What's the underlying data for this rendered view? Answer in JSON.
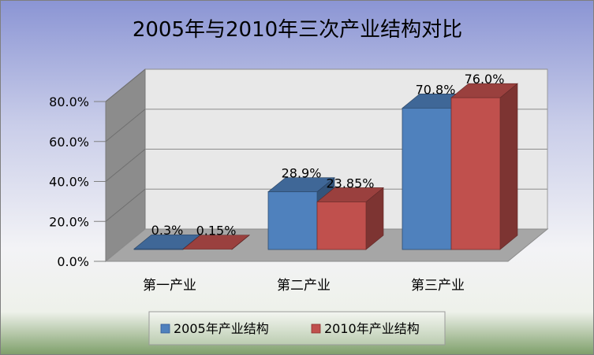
{
  "chart_data": {
    "type": "bar",
    "title": "2005年与2010年三次产业结构对比",
    "categories": [
      "第一产业",
      "第二产业",
      "第三产业"
    ],
    "series": [
      {
        "name": "2005年产业结构",
        "values": [
          0.3,
          28.9,
          70.8
        ],
        "labels": [
          "0.3%",
          "28.9%",
          "70.8%"
        ],
        "color": "#4F81BD"
      },
      {
        "name": "2010年产业结构",
        "values": [
          0.15,
          23.85,
          76.0
        ],
        "labels": [
          "0.15%",
          "23.85%",
          "76.0%"
        ],
        "color": "#C0504D"
      }
    ],
    "yticks": [
      "0.0%",
      "20.0%",
      "40.0%",
      "60.0%",
      "80.0%"
    ],
    "ylim": [
      0,
      80
    ],
    "xlabel": "",
    "ylabel": "",
    "grid": true,
    "legend": "bottom",
    "three_d": true
  }
}
